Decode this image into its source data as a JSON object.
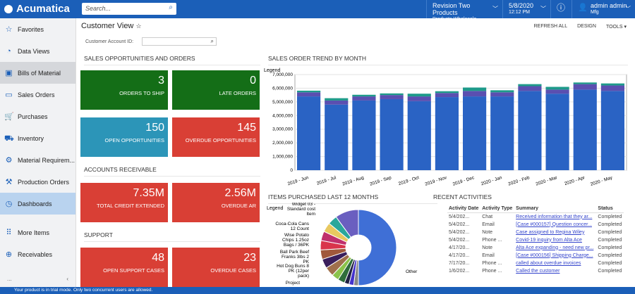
{
  "header": {
    "logo": "Acumatica",
    "search_placeholder": "Search...",
    "company": "Revision Two Products",
    "branch": "Products Wholesale",
    "date": "5/8/2020",
    "time": "12:12 PM",
    "user": "admin admin",
    "tenant": "Mfg"
  },
  "sidebar": {
    "items": [
      {
        "label": "Favorites",
        "icon": "☆"
      },
      {
        "label": "Data Views",
        "icon": "◔"
      },
      {
        "label": "Bills of Material",
        "icon": "▣"
      },
      {
        "label": "Sales Orders",
        "icon": "▭"
      },
      {
        "label": "Purchases",
        "icon": "🛒"
      },
      {
        "label": "Inventory",
        "icon": "⛟"
      },
      {
        "label": "Material Requirem...",
        "icon": "⚙"
      },
      {
        "label": "Production Orders",
        "icon": "⚒"
      },
      {
        "label": "Dashboards",
        "icon": "◷"
      },
      {
        "label": "More Items",
        "icon": "⠿"
      },
      {
        "label": "Receivables",
        "icon": "⊕"
      }
    ],
    "more": "...",
    "collapse": "‹"
  },
  "page": {
    "title": "Customer View",
    "refresh": "REFRESH ALL",
    "design": "DESIGN",
    "tools": "TOOLS ▾",
    "customer_label": "Customer Account ID:"
  },
  "sales": {
    "title": "SALES OPPORTUNITIES AND ORDERS",
    "tiles": [
      {
        "value": "3",
        "label": "ORDERS TO SHIP"
      },
      {
        "value": "0",
        "label": "LATE ORDERS"
      },
      {
        "value": "150",
        "label": "OPEN OPPORTUNITIES"
      },
      {
        "value": "145",
        "label": "OVERDUE OPPORTUNITIES"
      }
    ]
  },
  "ar": {
    "title": "ACCOUNTS RECEIVABLE",
    "tiles": [
      {
        "value": "7.35M",
        "label": "TOTAL CREDIT EXTENDED"
      },
      {
        "value": "2.56M",
        "label": "OVERDUE AR"
      }
    ]
  },
  "support": {
    "title": "SUPPORT",
    "tiles": [
      {
        "value": "48",
        "label": "OPEN SUPPORT CASES"
      },
      {
        "value": "23",
        "label": "OVERDUE CASES"
      }
    ]
  },
  "chart_data": [
    {
      "type": "bar",
      "stacked": true,
      "title": "SALES ORDER TREND BY MONTH",
      "legend_label": "Legend",
      "categories": [
        "2019 - Jun",
        "2019 - Jul",
        "2019 - Aug",
        "2019 - Sep",
        "2019 - Oct",
        "2019 - Nov",
        "2019 - Dec",
        "2020 - Jan",
        "2020 - Feb",
        "2020 - Mar",
        "2020 - Apr",
        "2020 - May"
      ],
      "series": [
        {
          "values": [
            5400000,
            4800000,
            5100000,
            5200000,
            5050000,
            5350000,
            5400000,
            5400000,
            5800000,
            5600000,
            5900000,
            5800000
          ],
          "color": "#2a63c4"
        },
        {
          "values": [
            300000,
            300000,
            300000,
            300000,
            350000,
            300000,
            400000,
            300000,
            350000,
            300000,
            400000,
            400000
          ],
          "color": "#5a4fb0"
        },
        {
          "values": [
            120000,
            170000,
            120000,
            120000,
            200000,
            130000,
            250000,
            150000,
            150000,
            200000,
            120000,
            150000
          ],
          "color": "#1e9a8a"
        }
      ],
      "ylim": [
        0,
        7000000
      ],
      "yticks": [
        "0",
        "1,000,000",
        "2,000,000",
        "3,000,000",
        "4,000,000",
        "5,000,000",
        "6,000,000",
        "7,000,000"
      ],
      "grid": true
    },
    {
      "type": "pie",
      "donut": true,
      "title": "ITEMS PURCHASED LAST 12 MONTHS",
      "legend_label": "Legend",
      "labels": [
        "Other",
        "Widget 03 - Standard cost Item",
        "Coca-Cola Cans 12 Count",
        "Wise Potato Chips 1.25oz Bags / 36PK",
        "Ball Park Beef Franks 3lbs 2 PK",
        "Hot Dog Buns 8 PK (12per pack)",
        "Project"
      ],
      "slices": [
        {
          "value": 50,
          "color": "#3f6fd6"
        },
        {
          "value": 2,
          "color": "#888888"
        },
        {
          "value": 2,
          "color": "#4433cc"
        },
        {
          "value": 2,
          "color": "#222244"
        },
        {
          "value": 3,
          "color": "#2f6e3a"
        },
        {
          "value": 3,
          "color": "#8bc34a"
        },
        {
          "value": 4,
          "color": "#a0704c"
        },
        {
          "value": 4,
          "color": "#3a1f5c"
        },
        {
          "value": 4,
          "color": "#a0583c"
        },
        {
          "value": 4,
          "color": "#d9344b"
        },
        {
          "value": 4,
          "color": "#c0306c"
        },
        {
          "value": 4,
          "color": "#e8c860"
        },
        {
          "value": 4,
          "color": "#2aa79b"
        },
        {
          "value": 10,
          "color": "#6a5fc0"
        }
      ]
    }
  ],
  "activities": {
    "title": "RECENT ACTIVITIES",
    "columns": [
      "Activity Date",
      "Activity Type",
      "Summary",
      "Status"
    ],
    "rows": [
      [
        "5/4/202...",
        "Chat",
        "Received information that they ar...",
        "Completed"
      ],
      [
        "5/4/202...",
        "Email",
        "[Case #000157] Question concer...",
        "Completed"
      ],
      [
        "5/4/202...",
        "Note",
        "Case assigned to Regina Wiley",
        "Completed"
      ],
      [
        "5/4/202...",
        "Phone ...",
        "Covid-19 inquiry from Alta Ace",
        "Completed"
      ],
      [
        "4/17/20...",
        "Note",
        "Alta Ace expanding - need new pr...",
        "Completed"
      ],
      [
        "4/17/20...",
        "Email",
        "[Case #000156] Shipping Charge...",
        "Completed"
      ],
      [
        "7/17/20...",
        "Phone ...",
        "called about overdue invoices",
        "Completed"
      ],
      [
        "1/6/202...",
        "Phone ...",
        "Called the customer",
        "Completed"
      ]
    ]
  },
  "banner": "Your product is in trial mode. Only two concurrent users are allowed."
}
